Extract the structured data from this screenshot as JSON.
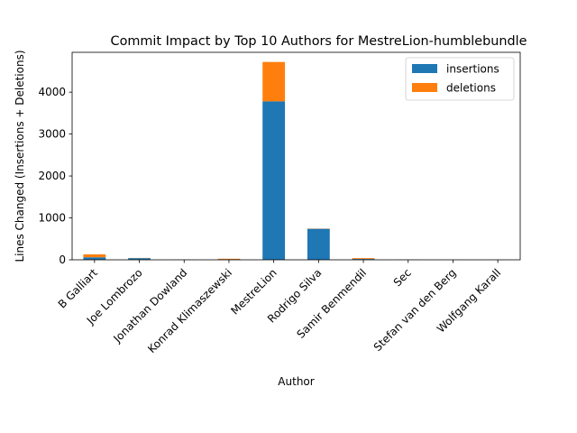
{
  "chart_data": {
    "type": "bar",
    "stacked": true,
    "title": "Commit Impact by Top 10 Authors for MestreLion-humblebundle",
    "xlabel": "Author",
    "ylabel": "Lines Changed (Insertions + Deletions)",
    "categories": [
      "B Galliart",
      "Joe Lombrozo",
      "Jonathan Dowland",
      "Konrad Klimaszewski",
      "MestreLion",
      "Rodrigo Silva",
      "Samir Benmendil",
      "Sec",
      "Stefan van den Berg",
      "Wolfgang Karall"
    ],
    "series": [
      {
        "name": "insertions",
        "color": "#1f77b4",
        "values": [
          60,
          40,
          3,
          10,
          3780,
          740,
          20,
          3,
          2,
          2
        ]
      },
      {
        "name": "deletions",
        "color": "#ff7f0e",
        "values": [
          70,
          5,
          1,
          15,
          940,
          5,
          20,
          1,
          1,
          1
        ]
      }
    ],
    "ylim": [
      0,
      4950
    ],
    "yticks": [
      0,
      1000,
      2000,
      3000,
      4000
    ],
    "ytick_labels": [
      "0",
      "1000",
      "2000",
      "3000",
      "4000"
    ],
    "grid": false,
    "legend_position": "upper right"
  }
}
